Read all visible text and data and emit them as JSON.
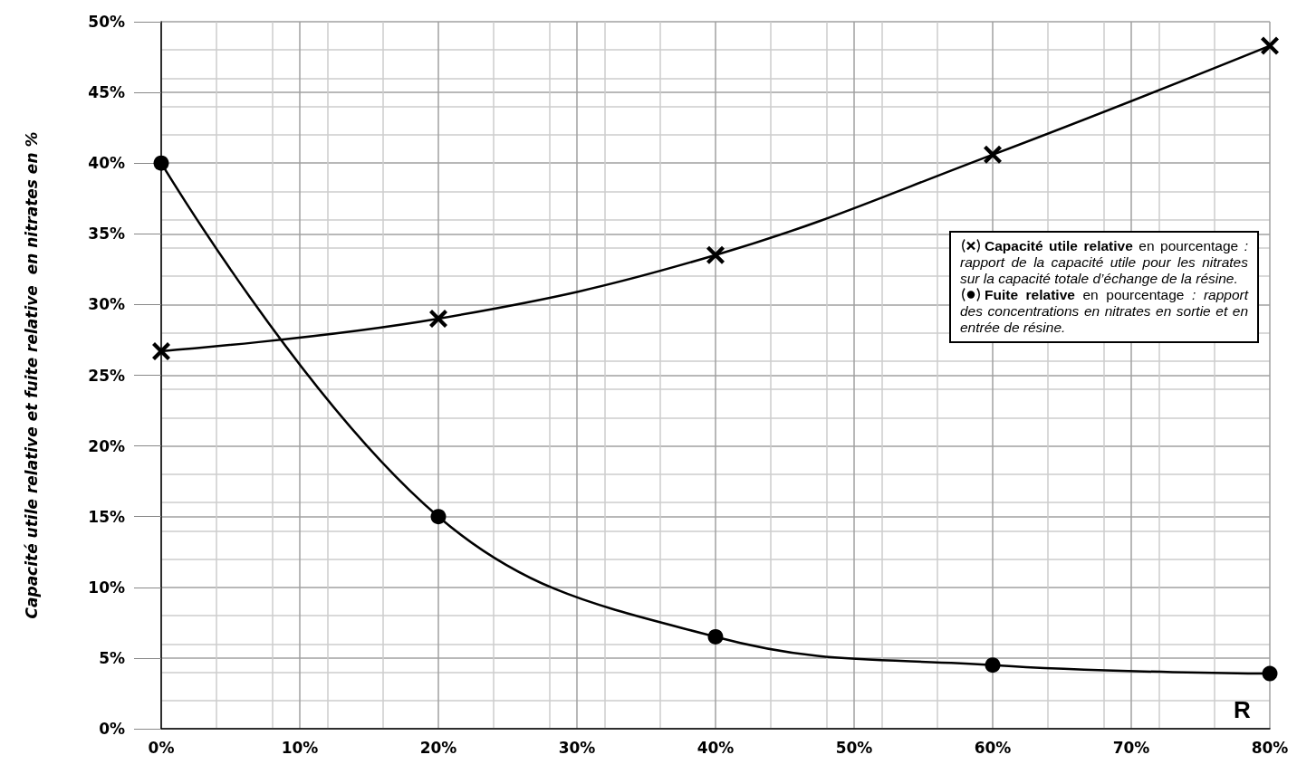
{
  "chart_data": {
    "type": "line",
    "ylabel": "Capacité utile relative et fuite relative  en nitrates en %",
    "xlabel": "R",
    "x": [
      0,
      20,
      40,
      60,
      80
    ],
    "series": [
      {
        "name": "Capacité utile relative",
        "color": "#000000",
        "marker": "cross",
        "values": [
          26.7,
          29.0,
          33.5,
          40.6,
          48.3
        ]
      },
      {
        "name": "Fuite relative",
        "color": "#000000",
        "marker": "circle",
        "values": [
          40.0,
          15.0,
          6.5,
          4.5,
          3.9
        ]
      }
    ],
    "annotations": [
      "en pourcentage",
      ": rapport de la capacité utile pour les nitrates sur la capacité totale d’échange de la résine.",
      "en pourcentage",
      ": rapport des concentrations en nitrates en sortie et en entrée de résine."
    ],
    "xlim": [
      0,
      80
    ],
    "xticks": [
      {
        "value": 0,
        "label": "0%"
      },
      {
        "value": 10,
        "label": "10%"
      },
      {
        "value": 20,
        "label": "20%"
      },
      {
        "value": 30,
        "label": "30%"
      },
      {
        "value": 40,
        "label": "40%"
      },
      {
        "value": 50,
        "label": "50%"
      },
      {
        "value": 60,
        "label": "60%"
      },
      {
        "value": 70,
        "label": "70%"
      },
      {
        "value": 80,
        "label": "80%"
      }
    ],
    "ylim": [
      0,
      50
    ],
    "yticks": [
      {
        "value": 0,
        "label": "0%"
      },
      {
        "value": 5,
        "label": "5%"
      },
      {
        "value": 10,
        "label": "10%"
      },
      {
        "value": 15,
        "label": "15%"
      },
      {
        "value": 20,
        "label": "20%"
      },
      {
        "value": 25,
        "label": "25%"
      },
      {
        "value": 30,
        "label": "30%"
      },
      {
        "value": 35,
        "label": "35%"
      },
      {
        "value": 40,
        "label": "40%"
      },
      {
        "value": 45,
        "label": "45%"
      },
      {
        "value": 50,
        "label": "50%"
      }
    ],
    "grid": true,
    "legend": "right"
  }
}
